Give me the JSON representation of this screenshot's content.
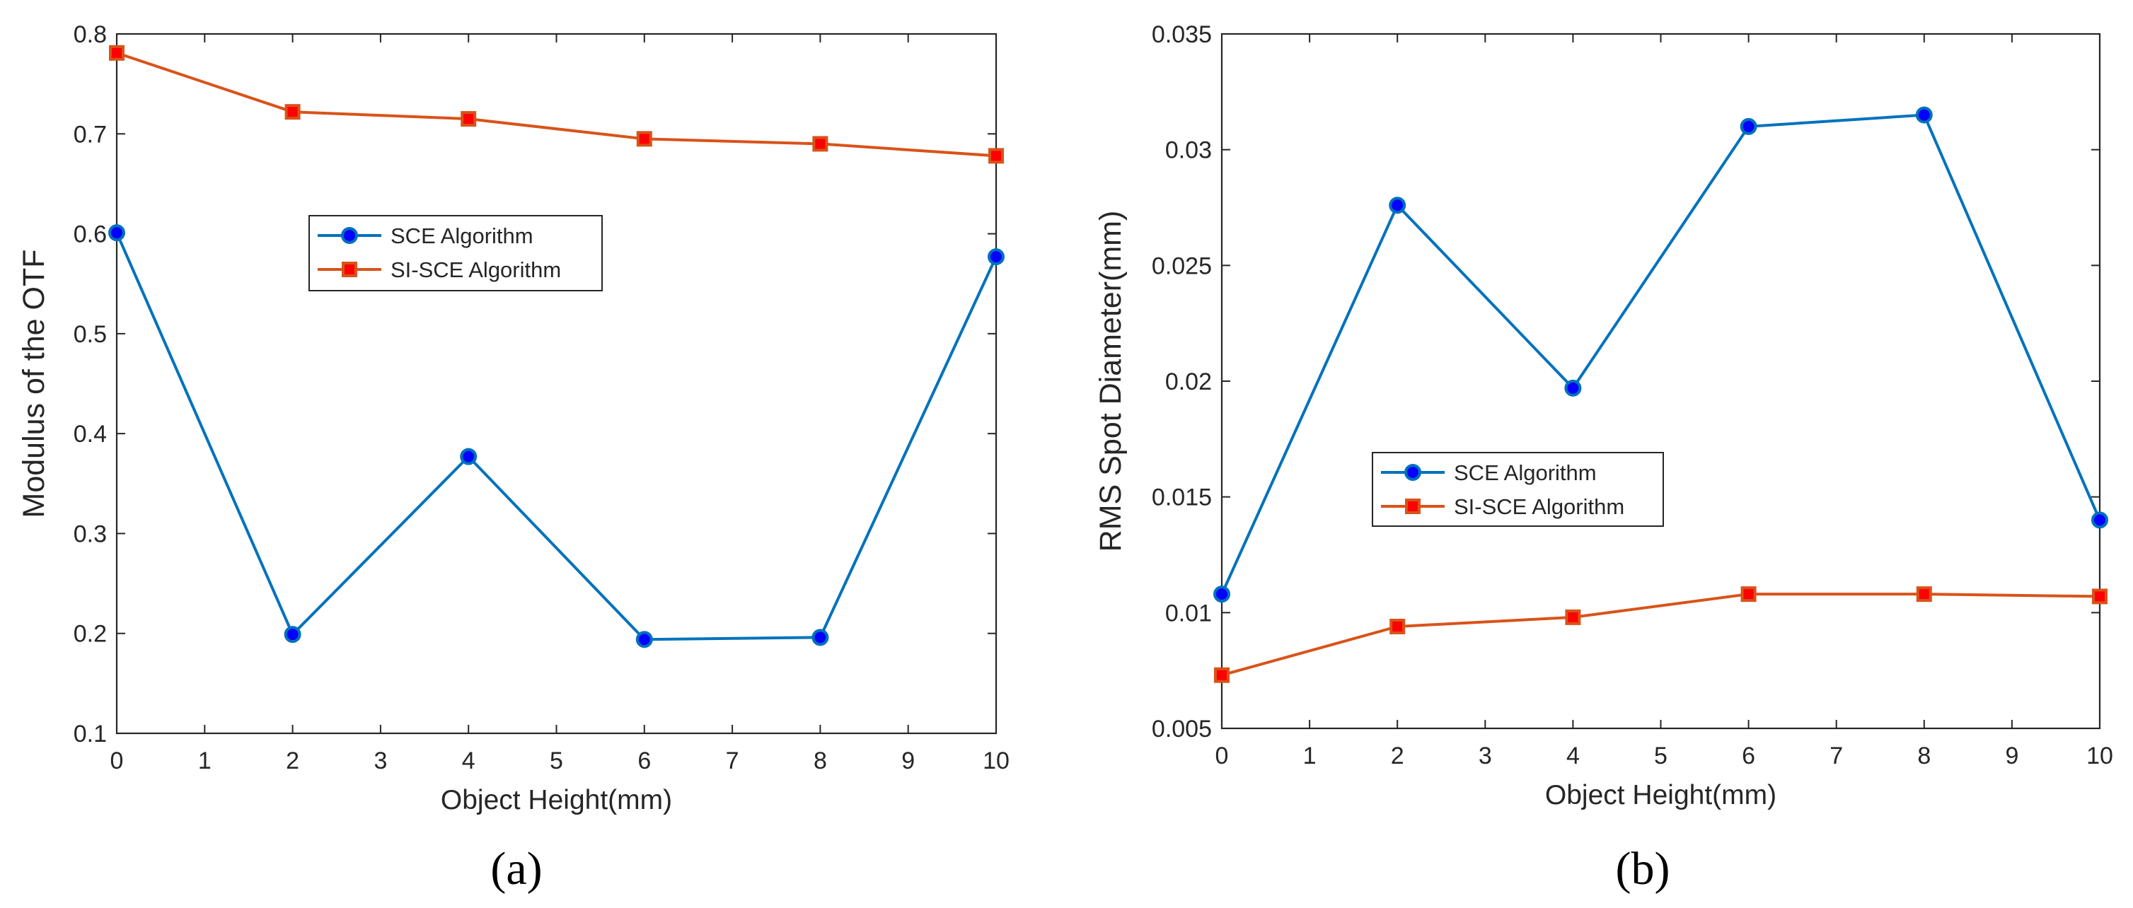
{
  "chart_data": [
    {
      "type": "line",
      "panel_label": "(a)",
      "xlabel": "Object Height(mm)",
      "ylabel": "Modulus of the OTF",
      "xlim": [
        0,
        10
      ],
      "ylim": [
        0.1,
        0.8
      ],
      "xticks": [
        "0",
        "1",
        "2",
        "3",
        "4",
        "5",
        "6",
        "7",
        "8",
        "9",
        "10"
      ],
      "yticks": [
        "0.1",
        "0.2",
        "0.3",
        "0.4",
        "0.5",
        "0.6",
        "0.7",
        "0.8"
      ],
      "x": [
        0,
        2,
        4,
        6,
        8,
        10
      ],
      "series": [
        {
          "name": "SCE Algorithm",
          "color": "#0072BD",
          "marker": "circle",
          "values": [
            0.601,
            0.199,
            0.377,
            0.194,
            0.196,
            0.577
          ]
        },
        {
          "name": "SI-SCE Algorithm",
          "color": "#D95319",
          "marker": "square",
          "values": [
            0.781,
            0.722,
            0.715,
            0.695,
            0.69,
            0.678
          ]
        }
      ],
      "legend": "inside-center"
    },
    {
      "type": "line",
      "panel_label": "(b)",
      "xlabel": "Object Height(mm)",
      "ylabel": "RMS Spot Diameter(mm)",
      "xlim": [
        0,
        10
      ],
      "ylim": [
        0.005,
        0.035
      ],
      "xticks": [
        "0",
        "1",
        "2",
        "3",
        "4",
        "5",
        "6",
        "7",
        "8",
        "9",
        "10"
      ],
      "yticks": [
        "0.005",
        "0.01",
        "0.015",
        "0.02",
        "0.025",
        "0.03",
        "0.035"
      ],
      "x": [
        0,
        2,
        4,
        6,
        8,
        10
      ],
      "series": [
        {
          "name": "SCE Algorithm",
          "color": "#0072BD",
          "marker": "circle",
          "values": [
            0.0108,
            0.0276,
            0.0197,
            0.031,
            0.0315,
            0.014
          ]
        },
        {
          "name": "SI-SCE Algorithm",
          "color": "#D95319",
          "marker": "square",
          "values": [
            0.0073,
            0.0094,
            0.0098,
            0.0108,
            0.0108,
            0.0107
          ]
        }
      ],
      "legend": "inside-center-left"
    }
  ]
}
